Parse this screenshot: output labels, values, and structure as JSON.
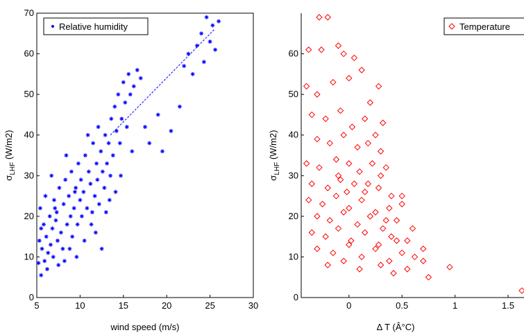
{
  "chart_data": [
    {
      "type": "scatter",
      "xlabel": "wind speed (m/s)",
      "ylabel_main": "σ",
      "ylabel_sub": "LHF",
      "ylabel_unit": " (W/m2)",
      "xlim": [
        5,
        30
      ],
      "ylim": [
        0,
        70
      ],
      "xticks": [
        5,
        10,
        15,
        20,
        25,
        30
      ],
      "yticks": [
        0,
        10,
        20,
        30,
        40,
        50,
        60,
        70
      ],
      "legend_placement": "top-right",
      "grid": false,
      "series": [
        {
          "name": "Relative humidity",
          "marker": "asterisk",
          "color": "#0000ff",
          "points": [
            [
              5.2,
              8.5
            ],
            [
              5.3,
              14
            ],
            [
              5.5,
              5.5
            ],
            [
              5.6,
              12
            ],
            [
              5.8,
              18
            ],
            [
              5.4,
              22
            ],
            [
              5.9,
              9
            ],
            [
              6.1,
              15
            ],
            [
              6.3,
              11
            ],
            [
              6.5,
              20
            ],
            [
              6.2,
              7
            ],
            [
              6.6,
              13
            ],
            [
              6.8,
              17
            ],
            [
              7.0,
              24
            ],
            [
              6.9,
              10
            ],
            [
              7.2,
              19
            ],
            [
              7.4,
              14
            ],
            [
              7.6,
              27
            ],
            [
              7.3,
              21
            ],
            [
              7.8,
              16
            ],
            [
              8.0,
              12
            ],
            [
              8.1,
              23
            ],
            [
              8.3,
              29
            ],
            [
              8.5,
              18
            ],
            [
              8.2,
              9
            ],
            [
              8.7,
              25
            ],
            [
              8.9,
              20
            ],
            [
              9.1,
              15
            ],
            [
              9.0,
              31
            ],
            [
              9.3,
              22
            ],
            [
              9.5,
              27
            ],
            [
              9.7,
              18
            ],
            [
              9.8,
              33
            ],
            [
              10.0,
              24
            ],
            [
              10.2,
              20
            ],
            [
              10.1,
              29
            ],
            [
              10.4,
              26
            ],
            [
              10.6,
              35
            ],
            [
              10.8,
              22
            ],
            [
              11.0,
              31
            ],
            [
              11.2,
              28
            ],
            [
              11.3,
              18
            ],
            [
              11.5,
              38
            ],
            [
              11.7,
              25
            ],
            [
              11.9,
              33
            ],
            [
              12.0,
              29
            ],
            [
              12.2,
              23
            ],
            [
              12.4,
              36
            ],
            [
              12.6,
              31
            ],
            [
              12.8,
              27
            ],
            [
              12.9,
              40
            ],
            [
              13.1,
              33
            ],
            [
              13.3,
              38
            ],
            [
              13.5,
              30
            ],
            [
              13.6,
              44
            ],
            [
              13.8,
              35
            ],
            [
              14.0,
              47
            ],
            [
              14.2,
              41
            ],
            [
              14.4,
              50
            ],
            [
              14.6,
              38
            ],
            [
              14.8,
              44
            ],
            [
              15.0,
              53
            ],
            [
              15.2,
              48
            ],
            [
              15.4,
              42
            ],
            [
              15.6,
              55
            ],
            [
              15.8,
              50
            ],
            [
              16.2,
              52
            ],
            [
              16.6,
              56
            ],
            [
              17.0,
              54
            ],
            [
              17.5,
              42
            ],
            [
              18.0,
              38
            ],
            [
              19.0,
              45
            ],
            [
              19.5,
              36
            ],
            [
              20.5,
              41
            ],
            [
              21.5,
              47
            ],
            [
              22.0,
              57
            ],
            [
              22.5,
              60
            ],
            [
              23.0,
              55
            ],
            [
              23.5,
              62
            ],
            [
              24.0,
              65
            ],
            [
              24.3,
              58
            ],
            [
              24.6,
              69
            ],
            [
              25.0,
              63
            ],
            [
              25.3,
              67
            ],
            [
              25.6,
              61
            ],
            [
              26.0,
              68
            ],
            [
              6.0,
              25
            ],
            [
              7.5,
              8
            ],
            [
              8.8,
              12
            ],
            [
              9.6,
              10
            ],
            [
              10.5,
              14
            ],
            [
              11.8,
              16
            ],
            [
              13.0,
              21
            ],
            [
              14.1,
              26
            ],
            [
              12.5,
              12
            ],
            [
              6.7,
              30
            ],
            [
              8.4,
              35
            ],
            [
              10.9,
              40
            ],
            [
              12.1,
              42
            ],
            [
              14.7,
              30
            ],
            [
              16.0,
              36
            ],
            [
              5.5,
              17
            ],
            [
              7.1,
              22
            ],
            [
              9.4,
              26
            ],
            [
              11.4,
              21
            ],
            [
              13.4,
              24
            ]
          ]
        }
      ],
      "trend_line": [
        [
          13.5,
          40
        ],
        [
          25.5,
          66
        ]
      ]
    },
    {
      "type": "scatter",
      "xlabel": "Δ T (Â°C)",
      "ylabel_main": "σ",
      "ylabel_sub": "LHF",
      "ylabel_unit": " (W/m2)",
      "xlim": [
        -0.45,
        1.65
      ],
      "ylim": [
        0,
        70
      ],
      "xticks": [
        0,
        0.5,
        1,
        1.5
      ],
      "xtick_labels": [
        "0",
        "0.5",
        "1",
        "1.5"
      ],
      "yticks": [
        0,
        10,
        20,
        30,
        40,
        50,
        60
      ],
      "legend_placement": "top-right",
      "grid": false,
      "series": [
        {
          "name": "Temperature",
          "marker": "diamond",
          "color": "#ff0000",
          "points": [
            [
              -0.28,
              69
            ],
            [
              -0.2,
              69
            ],
            [
              -0.38,
              61
            ],
            [
              -0.26,
              61
            ],
            [
              -0.1,
              62
            ],
            [
              -0.05,
              60
            ],
            [
              0.05,
              59
            ],
            [
              -0.4,
              52
            ],
            [
              -0.3,
              50
            ],
            [
              -0.15,
              53
            ],
            [
              0.0,
              54
            ],
            [
              0.12,
              56
            ],
            [
              0.2,
              48
            ],
            [
              0.28,
              52
            ],
            [
              -0.35,
              45
            ],
            [
              -0.22,
              44
            ],
            [
              -0.08,
              46
            ],
            [
              0.03,
              42
            ],
            [
              0.15,
              44
            ],
            [
              0.25,
              40
            ],
            [
              0.32,
              43
            ],
            [
              -0.3,
              39
            ],
            [
              -0.18,
              38
            ],
            [
              -0.05,
              40
            ],
            [
              0.08,
              37
            ],
            [
              0.18,
              38
            ],
            [
              0.3,
              36
            ],
            [
              -0.4,
              33
            ],
            [
              -0.28,
              32
            ],
            [
              -0.12,
              34
            ],
            [
              0.0,
              33
            ],
            [
              0.1,
              31
            ],
            [
              0.22,
              33
            ],
            [
              0.35,
              32
            ],
            [
              -0.35,
              28
            ],
            [
              -0.2,
              27
            ],
            [
              -0.08,
              29
            ],
            [
              0.05,
              28
            ],
            [
              0.15,
              26
            ],
            [
              0.28,
              27
            ],
            [
              0.4,
              25
            ],
            [
              -0.38,
              24
            ],
            [
              -0.25,
              23
            ],
            [
              -0.12,
              25
            ],
            [
              0.0,
              22
            ],
            [
              0.12,
              24
            ],
            [
              0.25,
              21
            ],
            [
              0.38,
              22
            ],
            [
              0.5,
              23
            ],
            [
              -0.3,
              20
            ],
            [
              -0.18,
              19
            ],
            [
              -0.05,
              21
            ],
            [
              0.08,
              18
            ],
            [
              0.2,
              20
            ],
            [
              0.32,
              17
            ],
            [
              0.45,
              19
            ],
            [
              -0.35,
              16
            ],
            [
              -0.22,
              15
            ],
            [
              -0.1,
              17
            ],
            [
              0.02,
              14
            ],
            [
              0.15,
              16
            ],
            [
              0.28,
              13
            ],
            [
              0.4,
              15
            ],
            [
              0.55,
              14
            ],
            [
              -0.3,
              12
            ],
            [
              -0.15,
              11
            ],
            [
              0.0,
              13
            ],
            [
              0.12,
              10
            ],
            [
              0.25,
              12
            ],
            [
              0.38,
              9
            ],
            [
              0.5,
              11
            ],
            [
              0.62,
              10
            ],
            [
              -0.2,
              8
            ],
            [
              -0.05,
              9
            ],
            [
              0.1,
              7
            ],
            [
              0.3,
              8
            ],
            [
              0.42,
              6
            ],
            [
              0.55,
              7
            ],
            [
              0.7,
              9
            ],
            [
              0.75,
              5
            ],
            [
              0.7,
              12
            ],
            [
              0.95,
              7.5
            ],
            [
              1.63,
              1.7
            ],
            [
              0.6,
              17
            ],
            [
              0.5,
              25
            ],
            [
              -0.1,
              30
            ],
            [
              0.18,
              28
            ],
            [
              0.3,
              30
            ],
            [
              -0.02,
              26
            ],
            [
              0.35,
              19
            ],
            [
              0.45,
              14
            ]
          ]
        }
      ]
    }
  ]
}
